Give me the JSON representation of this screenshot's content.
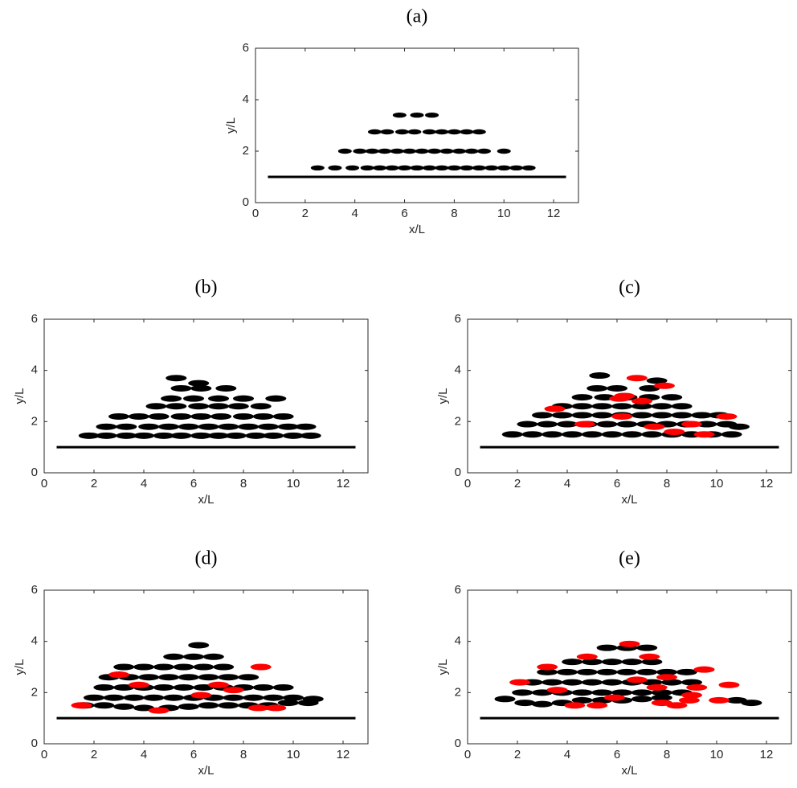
{
  "chart_data": [
    {
      "type": "scatter",
      "title": "(a)",
      "xlabel": "x/L",
      "ylabel": "y/L",
      "xlim": [
        0,
        13
      ],
      "ylim": [
        0,
        6
      ],
      "xticks": [
        0,
        2,
        4,
        6,
        8,
        10,
        12
      ],
      "yticks": [
        0,
        2,
        4,
        6
      ],
      "floor": {
        "x": [
          0.5,
          12.5
        ],
        "y": [
          1,
          1
        ]
      },
      "series": [
        {
          "color": "#000000",
          "x": [
            2.5,
            3.2,
            3.9,
            4.5,
            5.0,
            5.5,
            6.0,
            6.5,
            7.0,
            7.5,
            8.0,
            8.5,
            9.0,
            9.5,
            10.0,
            10.5,
            11.0,
            3.6,
            4.2,
            4.7,
            5.2,
            5.7,
            6.2,
            6.7,
            7.2,
            7.7,
            8.2,
            8.7,
            9.2,
            10.0,
            4.8,
            5.3,
            5.9,
            6.4,
            7.0,
            7.5,
            8.0,
            8.5,
            9.0,
            5.8,
            6.5,
            7.1
          ],
          "y": [
            1.35,
            1.35,
            1.35,
            1.35,
            1.35,
            1.35,
            1.35,
            1.35,
            1.35,
            1.35,
            1.35,
            1.35,
            1.35,
            1.35,
            1.35,
            1.35,
            1.35,
            2.0,
            2.0,
            2.0,
            2.0,
            2.0,
            2.0,
            2.0,
            2.0,
            2.0,
            2.0,
            2.0,
            2.0,
            2.0,
            2.75,
            2.75,
            2.75,
            2.75,
            2.75,
            2.75,
            2.75,
            2.75,
            2.75,
            3.4,
            3.4,
            3.4
          ]
        }
      ]
    },
    {
      "type": "scatter",
      "title": "(b)",
      "xlabel": "x/L",
      "ylabel": "y/L",
      "xlim": [
        0,
        13
      ],
      "ylim": [
        0,
        6
      ],
      "xticks": [
        0,
        2,
        4,
        6,
        8,
        10,
        12
      ],
      "yticks": [
        0,
        2,
        4,
        6
      ],
      "floor": {
        "x": [
          0.5,
          12.5
        ],
        "y": [
          1,
          1
        ]
      },
      "series": [
        {
          "color": "#000000",
          "x": [
            1.8,
            2.5,
            3.3,
            4.0,
            4.8,
            5.5,
            6.3,
            7.0,
            7.7,
            8.5,
            9.2,
            10.0,
            10.7,
            2.5,
            3.3,
            4.2,
            5.0,
            5.8,
            6.6,
            7.4,
            8.2,
            9.0,
            9.8,
            10.5,
            3.0,
            3.8,
            4.6,
            5.5,
            6.3,
            7.1,
            8.0,
            8.8,
            9.6,
            4.5,
            5.3,
            6.2,
            7.0,
            7.8,
            8.7,
            5.1,
            6.0,
            7.0,
            8.0,
            9.3,
            5.5,
            6.3,
            7.3,
            5.3,
            6.2
          ],
          "y": [
            1.45,
            1.45,
            1.45,
            1.45,
            1.45,
            1.45,
            1.45,
            1.45,
            1.45,
            1.45,
            1.45,
            1.45,
            1.45,
            1.8,
            1.8,
            1.8,
            1.8,
            1.8,
            1.8,
            1.8,
            1.8,
            1.8,
            1.8,
            1.8,
            2.2,
            2.2,
            2.2,
            2.2,
            2.2,
            2.2,
            2.2,
            2.2,
            2.2,
            2.6,
            2.6,
            2.6,
            2.6,
            2.6,
            2.6,
            2.9,
            2.9,
            2.9,
            2.9,
            2.9,
            3.3,
            3.3,
            3.3,
            3.7,
            3.5
          ]
        }
      ]
    },
    {
      "type": "scatter",
      "title": "(c)",
      "xlabel": "x/L",
      "ylabel": "y/L",
      "xlim": [
        0,
        13
      ],
      "ylim": [
        0,
        6
      ],
      "xticks": [
        0,
        2,
        4,
        6,
        8,
        10,
        12
      ],
      "yticks": [
        0,
        2,
        4,
        6
      ],
      "floor": {
        "x": [
          0.5,
          12.5
        ],
        "y": [
          1,
          1
        ]
      },
      "series": [
        {
          "color": "#000000",
          "x": [
            1.8,
            2.6,
            3.4,
            4.2,
            5.0,
            5.8,
            6.6,
            7.4,
            8.2,
            9.0,
            9.8,
            10.6,
            2.4,
            3.2,
            4.0,
            4.8,
            5.6,
            6.4,
            7.2,
            8.0,
            8.8,
            9.6,
            10.4,
            10.9,
            3.0,
            3.8,
            4.6,
            5.4,
            6.2,
            7.0,
            7.8,
            8.6,
            9.4,
            10.1,
            3.8,
            4.6,
            5.4,
            6.2,
            7.0,
            7.8,
            8.6,
            4.6,
            5.5,
            6.4,
            7.3,
            8.2,
            5.2,
            6.0,
            7.3,
            5.3,
            7.6
          ],
          "y": [
            1.5,
            1.5,
            1.5,
            1.5,
            1.5,
            1.5,
            1.5,
            1.5,
            1.5,
            1.5,
            1.5,
            1.5,
            1.9,
            1.9,
            1.9,
            1.9,
            1.9,
            1.9,
            1.9,
            1.9,
            1.9,
            1.9,
            1.9,
            1.8,
            2.25,
            2.25,
            2.25,
            2.25,
            2.25,
            2.25,
            2.25,
            2.25,
            2.25,
            2.25,
            2.6,
            2.6,
            2.6,
            2.6,
            2.6,
            2.6,
            2.6,
            2.95,
            2.95,
            2.95,
            2.95,
            2.95,
            3.3,
            3.3,
            3.3,
            3.8,
            3.6
          ]
        },
        {
          "color": "#ff0000",
          "x": [
            6.3,
            6.8,
            7.9,
            4.7,
            6.2,
            7.5,
            8.3,
            9.0,
            10.4,
            3.5,
            7.0,
            9.5,
            6.1
          ],
          "y": [
            3.0,
            3.7,
            3.4,
            1.9,
            2.2,
            1.8,
            1.6,
            1.9,
            2.2,
            2.5,
            2.8,
            1.5,
            2.9
          ]
        }
      ]
    },
    {
      "type": "scatter",
      "title": "(d)",
      "xlabel": "x/L",
      "ylabel": "y/L",
      "xlim": [
        0,
        13
      ],
      "ylim": [
        0,
        6
      ],
      "xticks": [
        0,
        2,
        4,
        6,
        8,
        10,
        12
      ],
      "yticks": [
        0,
        2,
        4,
        6
      ],
      "floor": {
        "x": [
          0.5,
          12.5
        ],
        "y": [
          1,
          1
        ]
      },
      "series": [
        {
          "color": "#000000",
          "x": [
            1.6,
            2.4,
            3.2,
            4.0,
            5.0,
            5.8,
            6.6,
            7.4,
            8.2,
            9.0,
            9.8,
            10.6,
            2.0,
            2.8,
            3.6,
            4.4,
            5.2,
            6.0,
            6.8,
            7.6,
            8.4,
            9.2,
            10.0,
            10.8,
            2.4,
            3.2,
            4.0,
            4.8,
            5.6,
            6.4,
            7.2,
            8.0,
            8.8,
            9.6,
            2.6,
            3.4,
            4.2,
            5.0,
            5.8,
            6.6,
            7.4,
            8.2,
            3.2,
            4.0,
            4.8,
            5.6,
            6.4,
            7.2,
            5.2,
            6.0,
            6.8,
            6.2
          ],
          "y": [
            1.5,
            1.5,
            1.45,
            1.4,
            1.4,
            1.45,
            1.5,
            1.5,
            1.5,
            1.5,
            1.6,
            1.6,
            1.8,
            1.8,
            1.8,
            1.8,
            1.8,
            1.8,
            1.8,
            1.8,
            1.8,
            1.8,
            1.8,
            1.75,
            2.2,
            2.2,
            2.2,
            2.2,
            2.2,
            2.2,
            2.2,
            2.2,
            2.2,
            2.2,
            2.6,
            2.6,
            2.6,
            2.6,
            2.6,
            2.6,
            2.6,
            2.6,
            3.0,
            3.0,
            3.0,
            3.0,
            3.0,
            3.0,
            3.4,
            3.4,
            3.4,
            3.85
          ]
        },
        {
          "color": "#ff0000",
          "x": [
            1.5,
            3.8,
            4.6,
            6.3,
            7.0,
            7.6,
            8.6,
            9.3,
            8.7,
            3.0
          ],
          "y": [
            1.5,
            2.3,
            1.3,
            1.9,
            2.3,
            2.1,
            1.4,
            1.4,
            3.0,
            2.7
          ]
        }
      ]
    },
    {
      "type": "scatter",
      "title": "(e)",
      "xlabel": "x/L",
      "ylabel": "y/L",
      "xlim": [
        0,
        13
      ],
      "ylim": [
        0,
        6
      ],
      "xticks": [
        0,
        2,
        4,
        6,
        8,
        10,
        12
      ],
      "yticks": [
        0,
        2,
        4,
        6
      ],
      "floor": {
        "x": [
          0.5,
          12.5
        ],
        "y": [
          1,
          1
        ]
      },
      "series": [
        {
          "color": "#000000",
          "x": [
            1.5,
            2.3,
            3.0,
            3.8,
            4.6,
            5.4,
            6.2,
            7.0,
            7.8,
            10.8,
            11.4,
            2.2,
            3.0,
            3.8,
            4.6,
            5.4,
            6.2,
            7.0,
            7.8,
            8.6,
            2.6,
            3.4,
            4.2,
            5.0,
            5.8,
            6.6,
            7.4,
            8.2,
            9.0,
            3.2,
            4.0,
            4.8,
            5.6,
            6.4,
            7.2,
            8.0,
            8.8,
            4.2,
            5.0,
            5.8,
            6.6,
            7.4,
            5.6,
            6.4,
            7.2
          ],
          "y": [
            1.75,
            1.6,
            1.55,
            1.6,
            1.7,
            1.7,
            1.7,
            1.75,
            1.8,
            1.7,
            1.6,
            2.0,
            2.0,
            2.0,
            2.0,
            2.0,
            2.0,
            2.0,
            2.0,
            2.0,
            2.4,
            2.4,
            2.4,
            2.4,
            2.4,
            2.4,
            2.4,
            2.4,
            2.4,
            2.8,
            2.8,
            2.8,
            2.8,
            2.8,
            2.8,
            2.8,
            2.8,
            3.2,
            3.2,
            3.2,
            3.2,
            3.2,
            3.75,
            3.75,
            3.75
          ]
        },
        {
          "color": "#ff0000",
          "x": [
            2.1,
            3.6,
            4.3,
            5.2,
            5.9,
            6.5,
            7.3,
            7.8,
            8.4,
            9.0,
            9.5,
            10.1,
            10.5,
            9.2,
            8.0,
            6.8,
            4.8,
            3.2,
            7.6,
            8.9
          ],
          "y": [
            2.4,
            2.1,
            1.5,
            1.5,
            1.8,
            3.9,
            3.4,
            1.6,
            1.5,
            1.9,
            2.9,
            1.7,
            2.3,
            2.2,
            2.6,
            2.5,
            3.4,
            3.0,
            2.2,
            1.7
          ]
        }
      ]
    }
  ]
}
